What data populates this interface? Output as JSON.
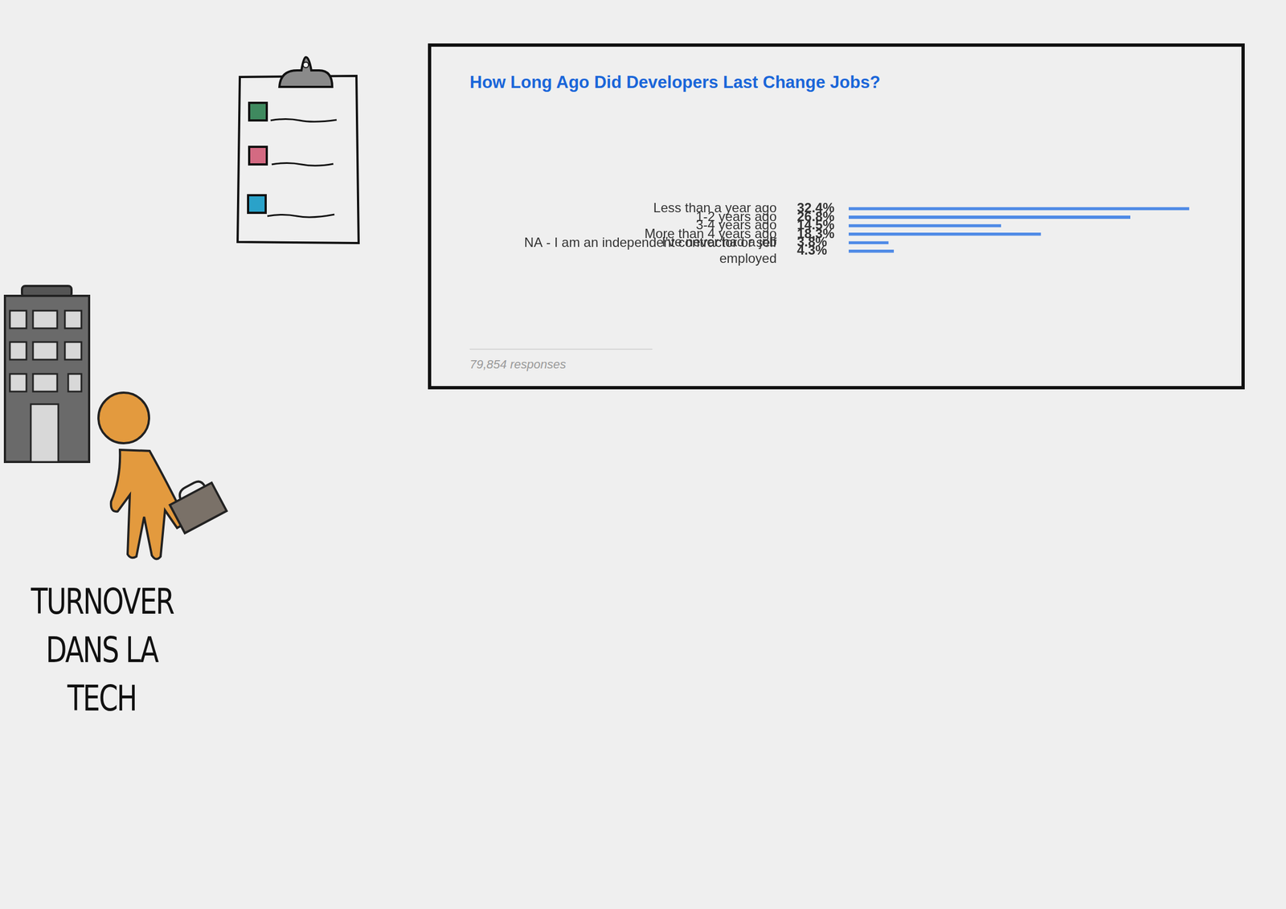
{
  "page": {
    "heading": [
      "TURNOVER",
      "DANS LA",
      "TECH"
    ]
  },
  "chart_data": {
    "type": "bar",
    "orientation": "horizontal",
    "title": "How Long Ago Did Developers Last Change Jobs?",
    "caption": "79,854 responses",
    "categories": [
      "Less than a year ago",
      "1-2 years ago",
      "3-4 years ago",
      "More than 4 years ago",
      "I've never had a job",
      "NA - I am an independent contractor or self employed"
    ],
    "values": [
      32.4,
      26.8,
      14.5,
      18.3,
      3.8,
      4.3
    ],
    "value_labels": [
      "32.4%",
      "26.8%",
      "14.5%",
      "18.3%",
      "3.8%",
      "4.3%"
    ],
    "data_labels": true,
    "color": "#8ab8f5",
    "xlim": [
      0,
      32.4
    ],
    "tick_labels": "y",
    "grid": false
  }
}
